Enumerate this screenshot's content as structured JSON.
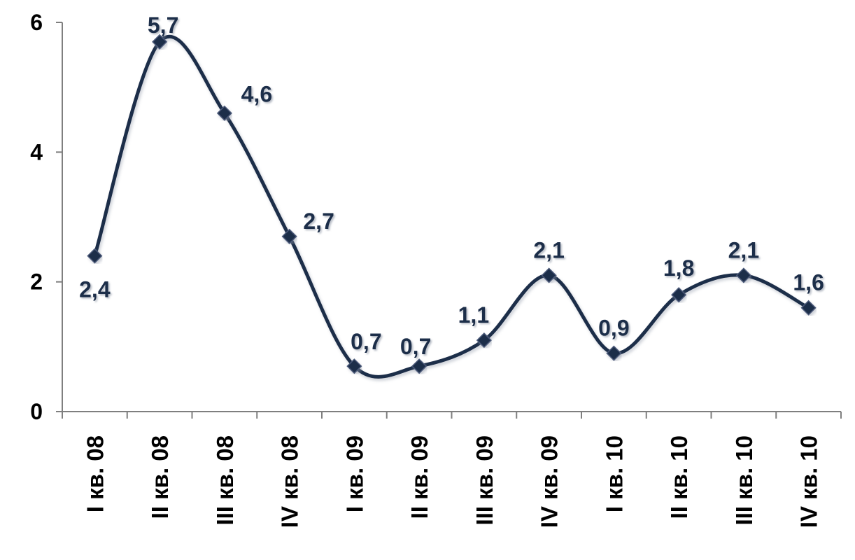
{
  "chart_data": {
    "type": "line",
    "title": "",
    "xlabel": "",
    "ylabel": "",
    "ylim": [
      0,
      6
    ],
    "yticks": [
      "0",
      "2",
      "4",
      "6"
    ],
    "categories": [
      "I кв. 08",
      "II кв. 08",
      "III кв. 08",
      "IV кв. 08",
      "I кв. 09",
      "II кв. 09",
      "III кв. 09",
      "IV кв. 09",
      "I кв. 10",
      "II кв. 10",
      "III кв. 10",
      "IV кв. 10"
    ],
    "series": [
      {
        "values": [
          2.4,
          5.7,
          4.6,
          2.7,
          0.7,
          0.7,
          1.1,
          2.1,
          0.9,
          1.8,
          2.1,
          1.6
        ],
        "labels": [
          "2,4",
          "5,7",
          "4,6",
          "2,7",
          "0,7",
          "0,7",
          "1,1",
          "2,1",
          "0,9",
          "1,8",
          "2,1",
          "1,6"
        ],
        "color": "#1f2d4a",
        "marker": "diamond",
        "smooth": true
      }
    ],
    "grid": false,
    "legend": "none"
  }
}
